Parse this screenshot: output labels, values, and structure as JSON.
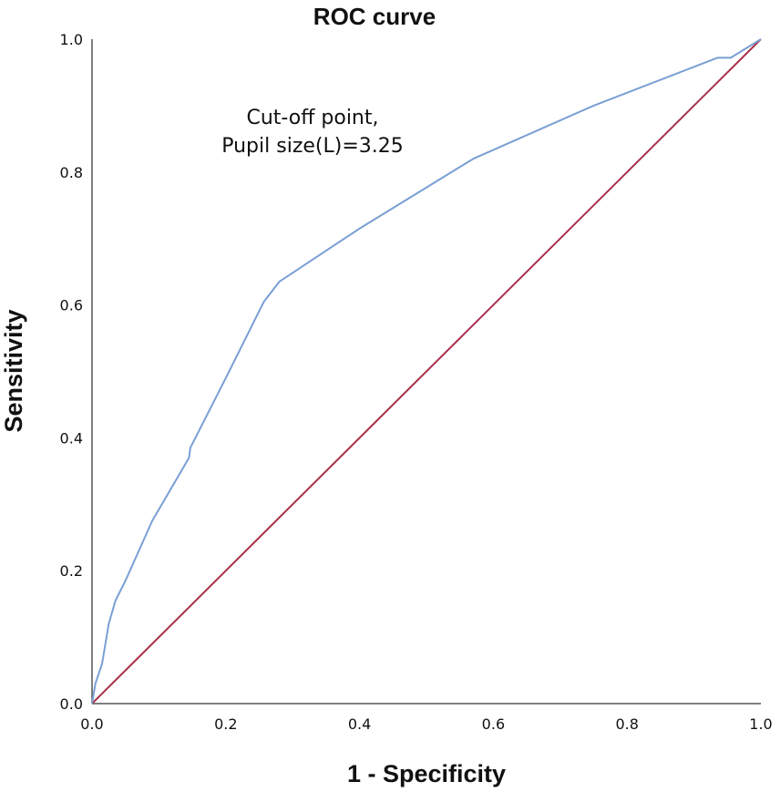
{
  "chart_data": {
    "type": "line",
    "title": "ROC curve",
    "xlabel": "1 - Specificity",
    "ylabel": "Sensitivity",
    "xlim": [
      0,
      1
    ],
    "ylim": [
      0,
      1
    ],
    "x_ticks": [
      "0.0",
      "0.2",
      "0.4",
      "0.6",
      "0.8",
      "1.0"
    ],
    "y_ticks": [
      "0.0",
      "0.2",
      "0.4",
      "0.6",
      "0.8",
      "1.0"
    ],
    "grid": false,
    "annotation": [
      "Cut-off point,",
      "Pupil size(L)=3.25"
    ],
    "series": [
      {
        "name": "ROC curve",
        "color": "#7a9fd4",
        "points": [
          [
            0.0,
            0.0
          ],
          [
            0.005,
            0.03
          ],
          [
            0.015,
            0.06
          ],
          [
            0.025,
            0.12
          ],
          [
            0.035,
            0.155
          ],
          [
            0.05,
            0.185
          ],
          [
            0.09,
            0.275
          ],
          [
            0.145,
            0.37
          ],
          [
            0.147,
            0.385
          ],
          [
            0.2,
            0.49
          ],
          [
            0.257,
            0.605
          ],
          [
            0.28,
            0.635
          ],
          [
            0.4,
            0.715
          ],
          [
            0.57,
            0.82
          ],
          [
            0.75,
            0.9
          ],
          [
            0.935,
            0.972
          ],
          [
            0.955,
            0.972
          ],
          [
            1.0,
            1.0
          ]
        ]
      },
      {
        "name": "Reference line",
        "color": "#a8304a",
        "points": [
          [
            0.0,
            0.0
          ],
          [
            1.0,
            1.0
          ]
        ]
      }
    ]
  }
}
